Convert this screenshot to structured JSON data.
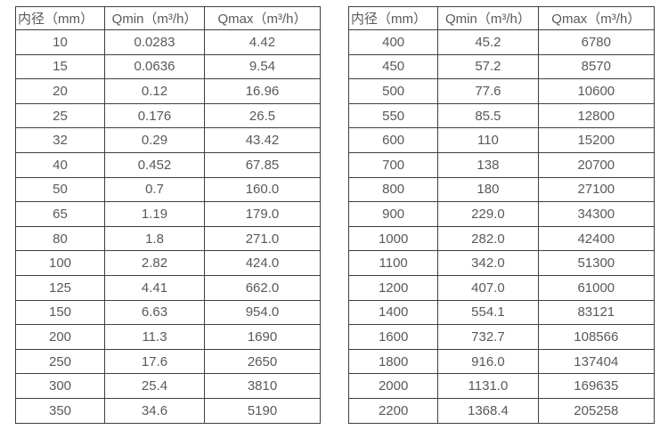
{
  "colors": {
    "border": "#3f3f3f",
    "text": "#595959",
    "background": "#ffffff"
  },
  "tables": [
    {
      "name": "flow-table-small-diameters",
      "headers": [
        "内径（mm）",
        "Qmin（m³/h）",
        "Qmax（m³/h）"
      ],
      "rows": [
        [
          "10",
          "0.0283",
          "4.42"
        ],
        [
          "15",
          "0.0636",
          "9.54"
        ],
        [
          "20",
          "0.12",
          "16.96"
        ],
        [
          "25",
          "0.176",
          "26.5"
        ],
        [
          "32",
          "0.29",
          "43.42"
        ],
        [
          "40",
          "0.452",
          "67.85"
        ],
        [
          "50",
          "0.7",
          "160.0"
        ],
        [
          "65",
          "1.19",
          "179.0"
        ],
        [
          "80",
          "1.8",
          "271.0"
        ],
        [
          "100",
          "2.82",
          "424.0"
        ],
        [
          "125",
          "4.41",
          "662.0"
        ],
        [
          "150",
          "6.63",
          "954.0"
        ],
        [
          "200",
          "11.3",
          "1690"
        ],
        [
          "250",
          "17.6",
          "2650"
        ],
        [
          "300",
          "25.4",
          "3810"
        ],
        [
          "350",
          "34.6",
          "5190"
        ]
      ]
    },
    {
      "name": "flow-table-large-diameters",
      "headers": [
        "内径（mm）",
        "Qmin（m³/h）",
        "Qmax（m³/h）"
      ],
      "rows": [
        [
          "400",
          "45.2",
          "6780"
        ],
        [
          "450",
          "57.2",
          "8570"
        ],
        [
          "500",
          "77.6",
          "10600"
        ],
        [
          "550",
          "85.5",
          "12800"
        ],
        [
          "600",
          "110",
          "15200"
        ],
        [
          "700",
          "138",
          "20700"
        ],
        [
          "800",
          "180",
          "27100"
        ],
        [
          "900",
          "229.0",
          "34300"
        ],
        [
          "1000",
          "282.0",
          "42400"
        ],
        [
          "1100",
          "342.0",
          "51300"
        ],
        [
          "1200",
          "407.0",
          "61000"
        ],
        [
          "1400",
          "554.1",
          "83121"
        ],
        [
          "1600",
          "732.7",
          "108566"
        ],
        [
          "1800",
          "916.0",
          "137404"
        ],
        [
          "2000",
          "1131.0",
          "169635"
        ],
        [
          "2200",
          "1368.4",
          "205258"
        ]
      ]
    }
  ]
}
